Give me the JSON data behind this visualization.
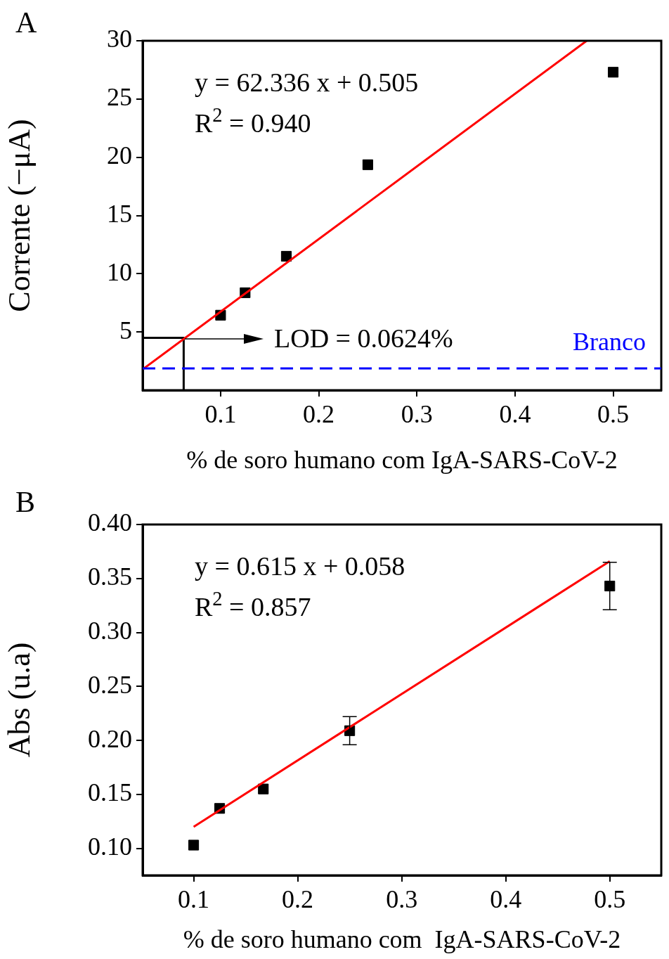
{
  "chart_data": [
    {
      "type": "scatter",
      "xlabel": "% de soro humano com IgA-SARS-CoV-2",
      "ylabel": "Corrente (−μA)",
      "xlim": [
        0.0206,
        0.549
      ],
      "ylim": [
        0,
        30
      ],
      "xticks": [
        0.1,
        0.2,
        0.3,
        0.4,
        0.5
      ],
      "yticks": [
        5,
        10,
        15,
        20,
        25,
        30
      ],
      "grid": false,
      "legend": false,
      "annotations": [
        "A",
        "y = 62.336 x + 0.505",
        "R$^{2}$ = 0.940",
        "LOD = 0.0624%"
      ],
      "ref_lines": [
        {
          "axis": "y",
          "value": 1.87,
          "label": "Branco",
          "color": "#0000ff",
          "line_style": "dashed"
        }
      ],
      "series": [
        {
          "type": "scatter",
          "marker": "square",
          "color": "#000000",
          "x": [
            0.1,
            0.125,
            0.167,
            0.25,
            0.5
          ],
          "values": [
            6.44,
            8.37,
            11.5,
            19.36,
            27.3
          ]
        },
        {
          "type": "line",
          "marker": "none",
          "color": "#ff0000",
          "line_style": "solid",
          "x": [
            0.0206,
            0.473
          ],
          "values": [
            1.79,
            30
          ]
        },
        {
          "type": "line",
          "marker": "none",
          "color": "#000000",
          "line_style": "solid",
          "x": [
            0.0206,
            0.0624,
            0.0624
          ],
          "values": [
            4.5,
            4.5,
            0
          ]
        }
      ]
    },
    {
      "type": "scatter",
      "xlabel": "% de soro humano com  IgA-SARS-CoV-2",
      "ylabel": "Abs (u.a)",
      "xlim": [
        0.051,
        0.5495
      ],
      "ylim": [
        0.075,
        0.4
      ],
      "xticks": [
        0.1,
        0.2,
        0.3,
        0.4,
        0.5
      ],
      "yticks": [
        {
          "value": 0.1,
          "label": "0.10"
        },
        {
          "value": 0.15,
          "label": "0.15"
        },
        {
          "value": 0.2,
          "label": "0.20"
        },
        {
          "value": 0.25,
          "label": "0.25"
        },
        {
          "value": 0.3,
          "label": "0.30"
        },
        {
          "value": 0.35,
          "label": "0.35"
        },
        {
          "value": 0.4,
          "label": "0.40"
        }
      ],
      "grid": false,
      "legend": false,
      "annotations": [
        "B",
        "y = 0.615 x + 0.058",
        "R$^{2}$ = 0.857"
      ],
      "series": [
        {
          "type": "scatter",
          "marker": "square",
          "color": "#000000",
          "x": [
            0.1,
            0.125,
            0.167,
            0.25,
            0.5
          ],
          "values": [
            0.103,
            0.137,
            0.155,
            0.209,
            0.343
          ],
          "errors": [
            null,
            null,
            null,
            0.013,
            0.022
          ]
        },
        {
          "type": "line",
          "marker": "none",
          "color": "#ff0000",
          "line_style": "solid",
          "x": [
            0.1,
            0.5
          ],
          "values": [
            0.12,
            0.366
          ]
        }
      ]
    }
  ]
}
